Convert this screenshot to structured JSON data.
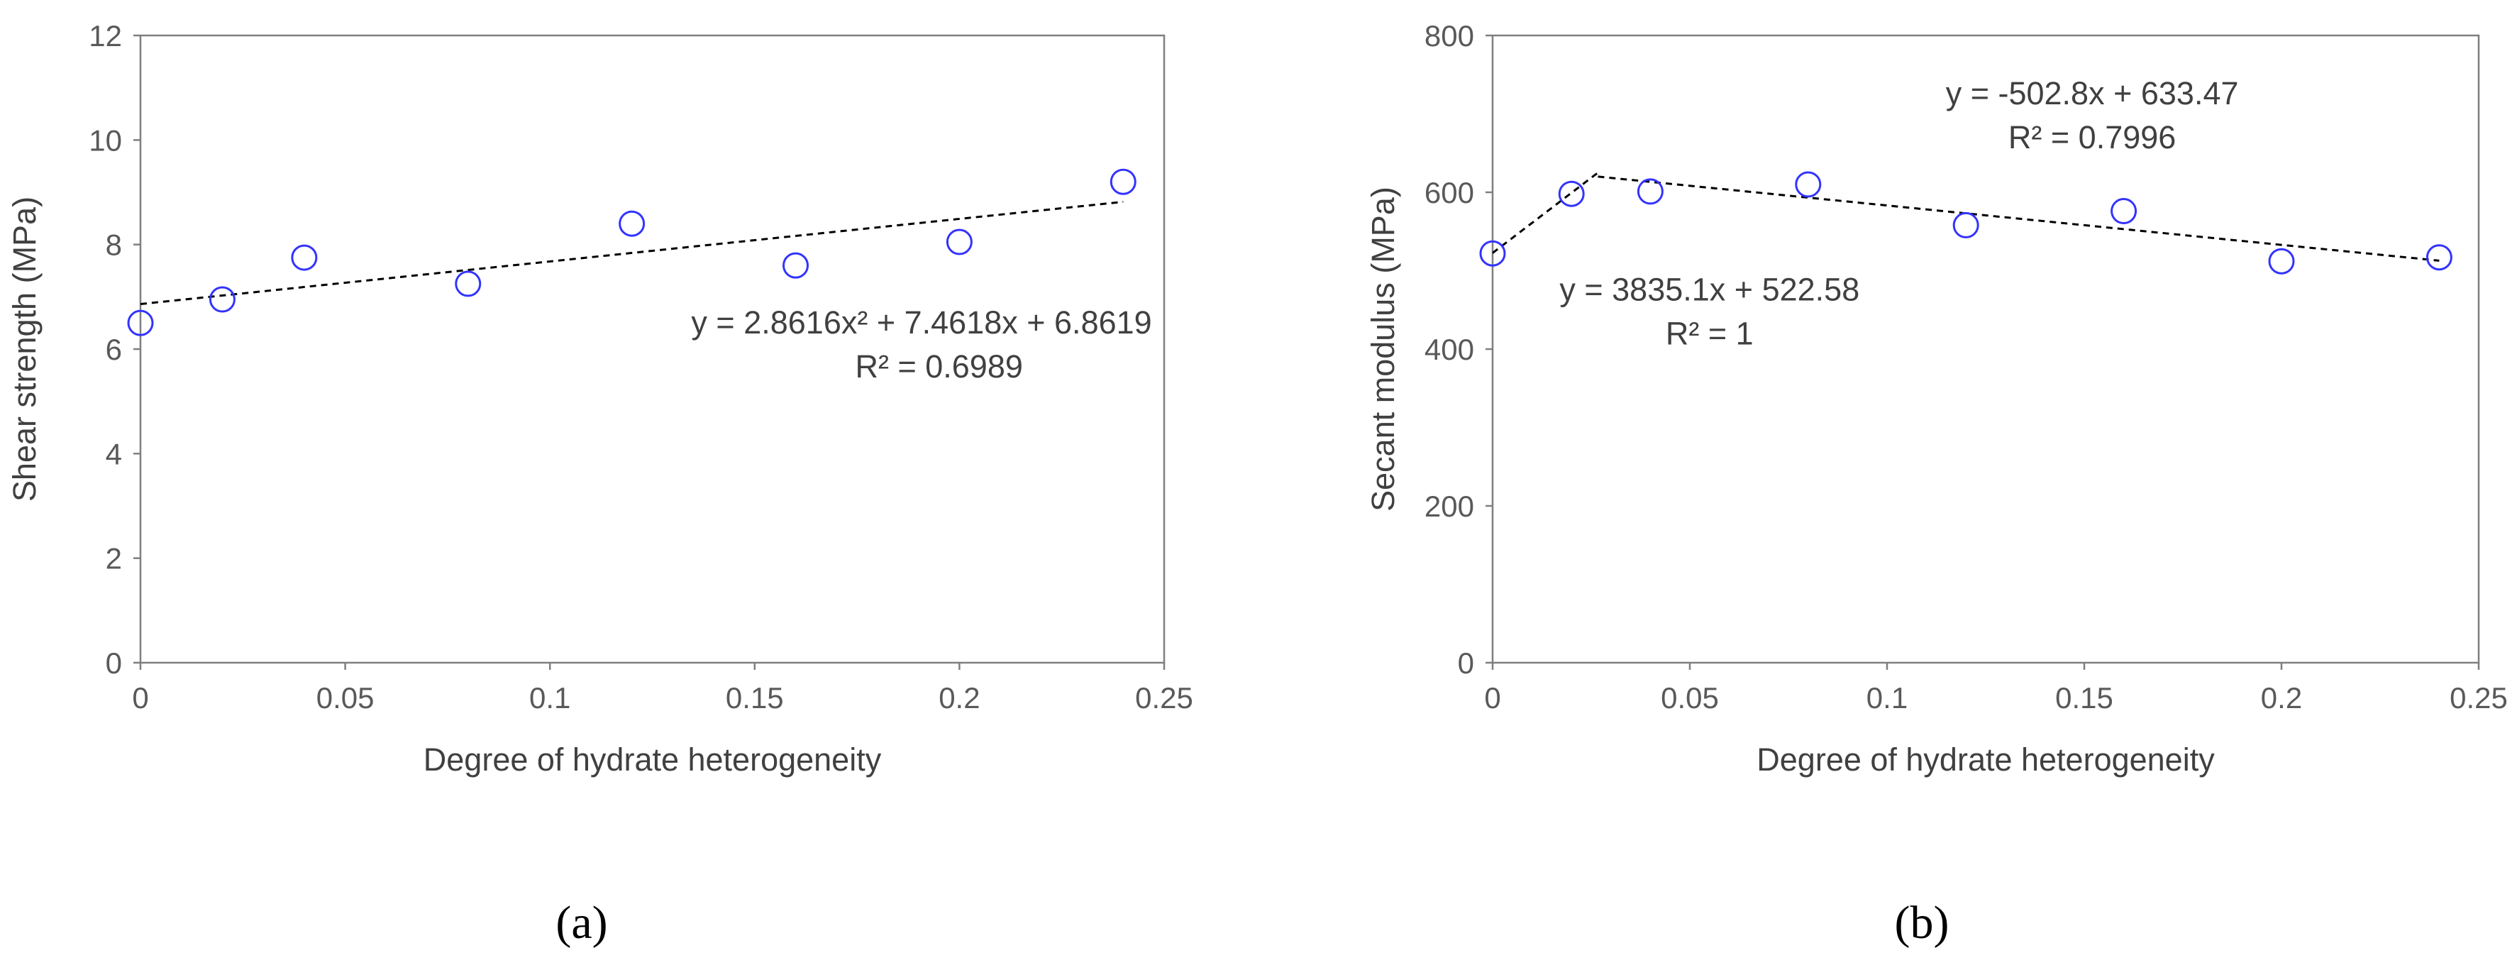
{
  "chart_data": [
    {
      "type": "scatter",
      "panel_label": "(a)",
      "xlabel": "Degree of hydrate heterogeneity",
      "ylabel": "Shear strength (MPa)",
      "xlim": [
        0,
        0.25
      ],
      "ylim": [
        0,
        12
      ],
      "x_ticks": [
        "0",
        "0.05",
        "0.1",
        "0.15",
        "0.2",
        "0.25"
      ],
      "y_ticks": [
        "0",
        "2",
        "4",
        "6",
        "8",
        "10",
        "12"
      ],
      "grid": false,
      "marker_color": "#3333ff",
      "series": [
        {
          "x": [
            0,
            0.02,
            0.04,
            0.08,
            0.12,
            0.16,
            0.2,
            0.24
          ],
          "y": [
            6.5,
            6.95,
            7.75,
            7.25,
            8.4,
            7.6,
            8.05,
            9.2
          ]
        }
      ],
      "trendlines": [
        {
          "x": [
            0,
            0.24
          ],
          "y": [
            6.8619,
            8.8172
          ],
          "style": "dashed"
        }
      ],
      "annotations": [
        {
          "lines": [
            "y = 2.8616x² + 7.4618x + 6.8619",
            "R² = 0.6989"
          ],
          "at_x": 0.247,
          "at_y": 6.3,
          "anchor": "end"
        }
      ]
    },
    {
      "type": "scatter",
      "panel_label": "(b)",
      "xlabel": "Degree of hydrate heterogeneity",
      "ylabel": "Secant modulus (MPa)",
      "xlim": [
        0,
        0.25
      ],
      "ylim": [
        0,
        800
      ],
      "x_ticks": [
        "0",
        "0.05",
        "0.1",
        "0.15",
        "0.2",
        "0.25"
      ],
      "y_ticks": [
        "0",
        "200",
        "400",
        "600",
        "800"
      ],
      "grid": false,
      "marker_color": "#3333ff",
      "series": [
        {
          "x": [
            0,
            0.02,
            0.04,
            0.08,
            0.12,
            0.16,
            0.2,
            0.24
          ],
          "y": [
            522,
            598,
            601,
            610,
            558,
            576,
            512,
            517
          ]
        }
      ],
      "trendlines": [
        {
          "x": [
            0,
            0.0267
          ],
          "y": [
            522.58,
            625.0
          ],
          "style": "dashed"
        },
        {
          "x": [
            0.0267,
            0.24
          ],
          "y": [
            620.0,
            512.8
          ],
          "style": "dashed"
        }
      ],
      "annotations": [
        {
          "lines": [
            "y = -502.8x + 633.47",
            "R² = 0.7996"
          ],
          "at_x": 0.152,
          "at_y": 712,
          "anchor": "middle"
        },
        {
          "lines": [
            "y = 3835.1x + 522.58",
            "R² = 1"
          ],
          "at_x": 0.055,
          "at_y": 462,
          "anchor": "middle"
        }
      ]
    }
  ]
}
